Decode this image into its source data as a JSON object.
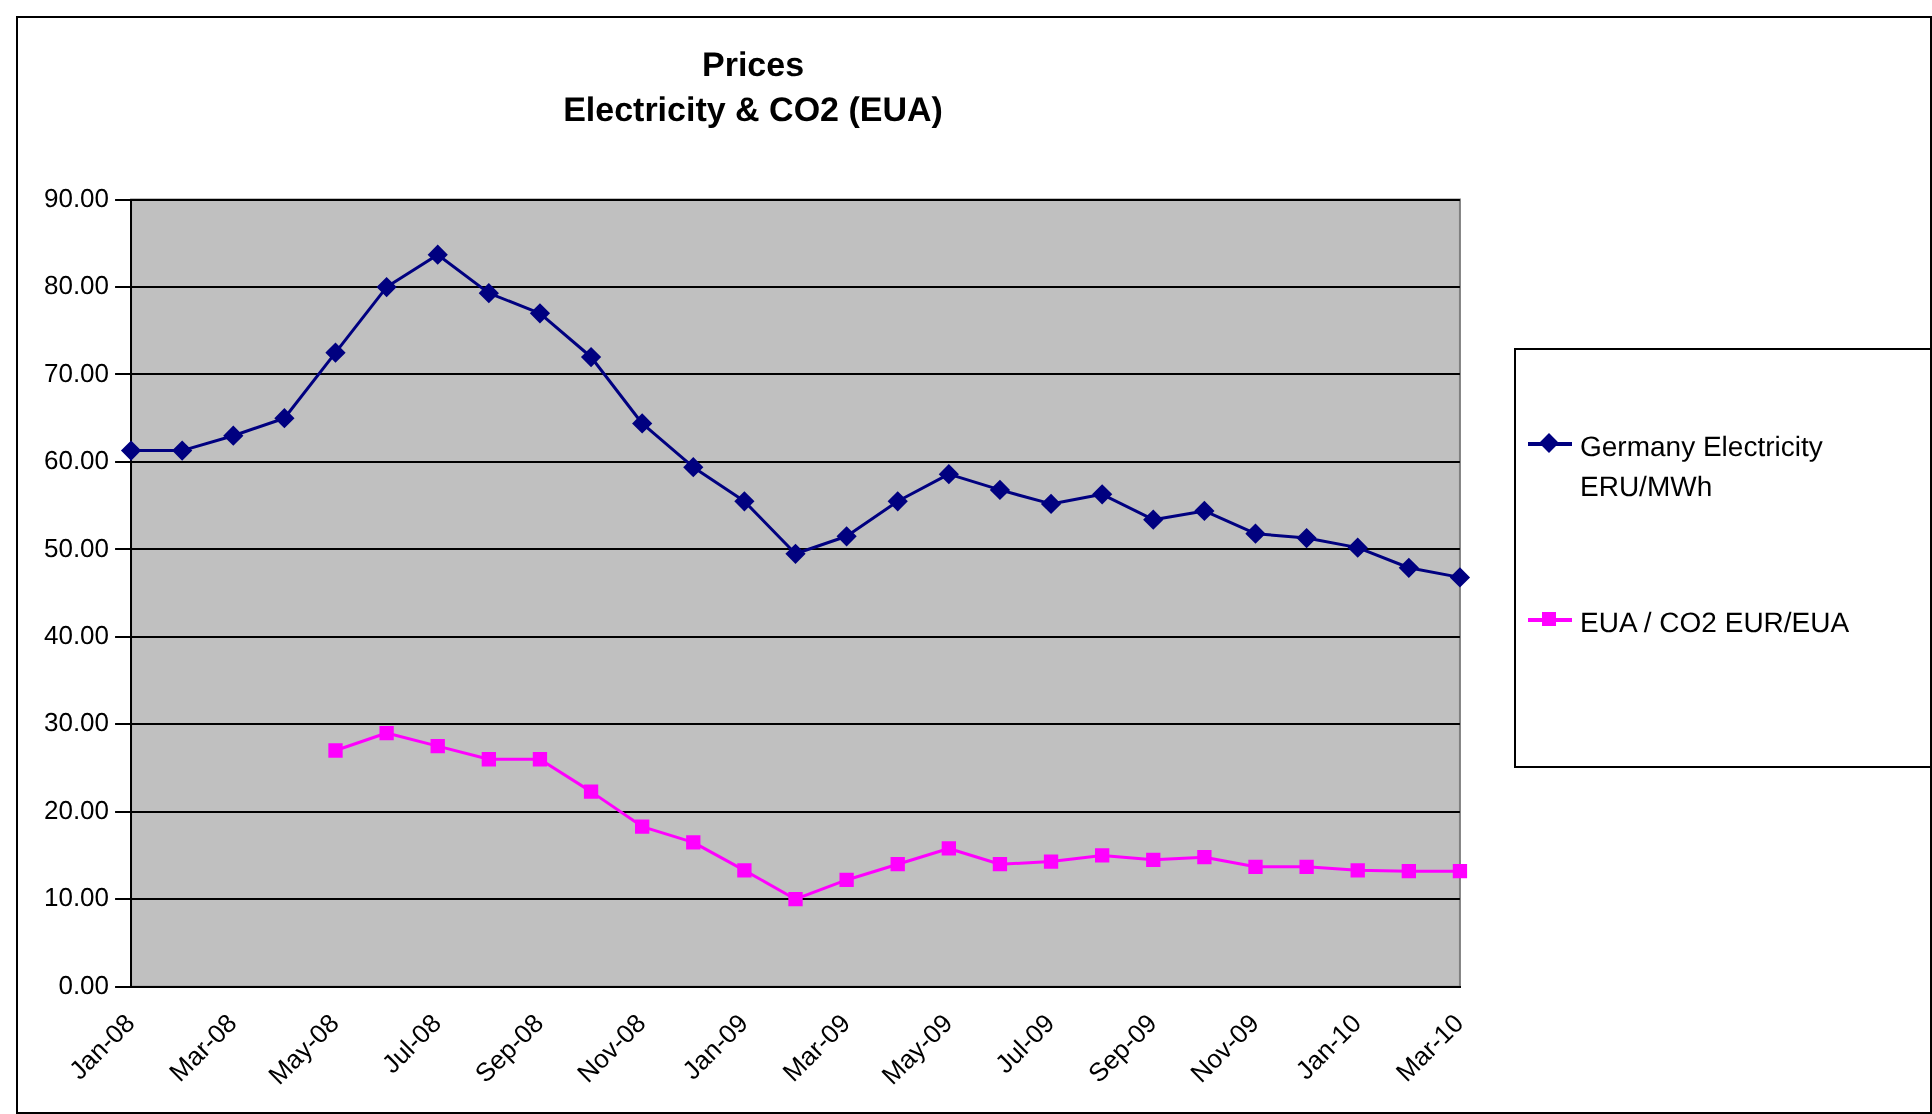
{
  "chart_data": {
    "type": "line",
    "title": "Prices",
    "subtitle": "Electricity & CO2 (EUA)",
    "categories": [
      "Jan-08",
      null,
      "Mar-08",
      null,
      "May-08",
      null,
      "Jul-08",
      null,
      "Sep-08",
      null,
      "Nov-08",
      null,
      "Jan-09",
      null,
      "Mar-09",
      null,
      "May-09",
      null,
      "Jul-09",
      null,
      "Sep-09",
      null,
      "Nov-09",
      null,
      "Jan-10",
      null,
      "Mar-10"
    ],
    "series": [
      {
        "name": "Germany Electricity ERU/MWh",
        "color": "#000080",
        "marker": "diamond",
        "values": [
          61.3,
          61.3,
          63,
          65,
          72.5,
          80,
          83.7,
          79.3,
          77,
          72,
          64.4,
          59.4,
          55.5,
          49.5,
          51.5,
          55.5,
          58.6,
          56.8,
          55.2,
          56.3,
          53.4,
          54.4,
          51.8,
          51.3,
          50.2,
          47.9,
          46.8
        ]
      },
      {
        "name": "EUA / CO2 EUR/EUA",
        "color": "#ff00ff",
        "marker": "square",
        "values": [
          null,
          null,
          null,
          null,
          27,
          29,
          27.5,
          26,
          26,
          22.3,
          18.3,
          16.5,
          13.3,
          10,
          12.2,
          14,
          15.8,
          14,
          14.3,
          15,
          14.5,
          14.8,
          13.7,
          13.7,
          13.3,
          13.2,
          13.2
        ]
      }
    ],
    "ylim": [
      0,
      90
    ],
    "yticks": [
      {
        "value": 0,
        "label": "0.00"
      },
      {
        "value": 10,
        "label": "10.00"
      },
      {
        "value": 20,
        "label": "20.00"
      },
      {
        "value": 30,
        "label": "30.00"
      },
      {
        "value": 40,
        "label": "40.00"
      },
      {
        "value": 50,
        "label": "50.00"
      },
      {
        "value": 60,
        "label": "60.00"
      },
      {
        "value": 70,
        "label": "70.00"
      },
      {
        "value": 80,
        "label": "80.00"
      },
      {
        "value": 90,
        "label": "90.00"
      }
    ],
    "grid": "y",
    "legend": "right",
    "line_style": "solid"
  }
}
